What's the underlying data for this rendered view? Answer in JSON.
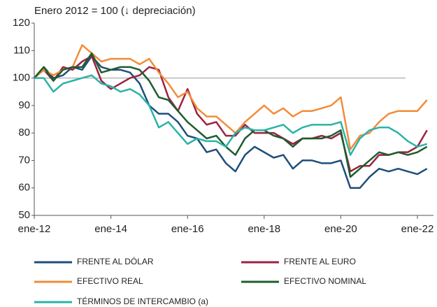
{
  "chart_data": {
    "type": "line",
    "title": "Enero 2012 = 100 (↓ depreciación)",
    "categories": [
      "ene-12",
      null,
      null,
      null,
      null,
      null,
      null,
      null,
      "ene-14",
      null,
      null,
      null,
      null,
      null,
      null,
      null,
      "ene-16",
      null,
      null,
      null,
      null,
      null,
      null,
      null,
      "ene-18",
      null,
      null,
      null,
      null,
      null,
      null,
      null,
      "ene-20",
      null,
      null,
      null,
      null,
      null,
      null,
      null,
      "ene-22",
      null
    ],
    "ylim": [
      50,
      120
    ],
    "yticks": [
      50,
      60,
      70,
      80,
      90,
      100,
      110,
      120
    ],
    "reference_line": 100,
    "series": [
      {
        "name": "FRENTE AL DÓLAR",
        "color": "#1f4e79",
        "values": [
          100,
          104,
          100,
          101,
          104,
          103,
          108,
          104,
          103,
          103,
          102,
          98,
          90,
          87,
          87,
          84,
          79,
          78,
          73,
          74,
          69,
          66,
          72,
          75,
          73,
          71,
          72,
          67,
          70,
          70,
          69,
          69,
          70,
          60,
          60,
          64,
          67,
          66,
          67,
          66,
          65,
          67
        ]
      },
      {
        "name": "FRENTE AL EURO",
        "color": "#9b2242",
        "values": [
          100,
          103,
          99,
          104,
          103,
          106,
          108,
          99,
          96,
          98,
          100,
          101,
          104,
          103,
          93,
          88,
          96,
          87,
          83,
          84,
          79,
          79,
          83,
          80,
          80,
          80,
          78,
          76,
          78,
          78,
          79,
          78,
          80,
          66,
          68,
          68,
          72,
          72,
          73,
          73,
          75,
          81
        ]
      },
      {
        "name": "EFECTIVO REAL",
        "color": "#f28c38",
        "values": [
          100,
          103,
          101,
          103,
          104,
          112,
          109,
          106,
          107,
          107,
          107,
          105,
          107,
          102,
          98,
          93,
          95,
          89,
          86,
          86,
          83,
          80,
          84,
          87,
          90,
          87,
          89,
          86,
          88,
          88,
          89,
          90,
          93,
          74,
          79,
          80,
          84,
          87,
          88,
          88,
          88,
          92
        ]
      },
      {
        "name": "EFECTIVO NOMINAL",
        "color": "#1f5c2e",
        "values": [
          100,
          104,
          99,
          103,
          104,
          104,
          109,
          102,
          103,
          104,
          104,
          103,
          99,
          93,
          92,
          88,
          84,
          81,
          78,
          79,
          75,
          72,
          78,
          81,
          81,
          79,
          78,
          75,
          78,
          78,
          78,
          79,
          81,
          64,
          67,
          70,
          73,
          72,
          73,
          72,
          73,
          75
        ]
      },
      {
        "name": "TÉRMINOS DE INTERCAMBIO (a)",
        "color": "#2ab3a6",
        "values": [
          100,
          100,
          95,
          98,
          99,
          100,
          101,
          98,
          97,
          95,
          96,
          94,
          90,
          82,
          84,
          80,
          76,
          78,
          77,
          77,
          75,
          80,
          82,
          81,
          81,
          82,
          83,
          80,
          82,
          83,
          83,
          83,
          84,
          72,
          78,
          81,
          82,
          82,
          80,
          77,
          75,
          76
        ]
      }
    ]
  }
}
